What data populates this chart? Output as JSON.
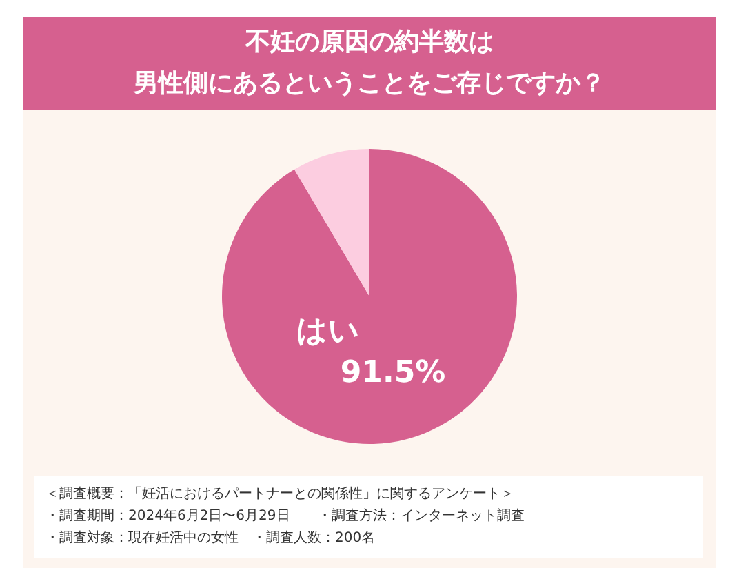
{
  "chart_data": {
    "type": "pie",
    "title": "不妊の原因の約半数は男性側にあるということをご存じですか？",
    "categories": [
      "はい",
      null
    ],
    "values": [
      91.5,
      8.5
    ],
    "colors": [
      "#d6608f",
      "#fccde0"
    ],
    "value_labels": [
      "91.5%",
      null
    ],
    "annotations": [
      "＜調査概要：「妊活におけるパートナーとの関係性」に関するアンケート＞",
      "・調査期間：2024年6月2日〜6月29日　　・調査方法：インターネット調査",
      "・調査対象：現在妊活中の女性　・調査人数：200名"
    ]
  }
}
